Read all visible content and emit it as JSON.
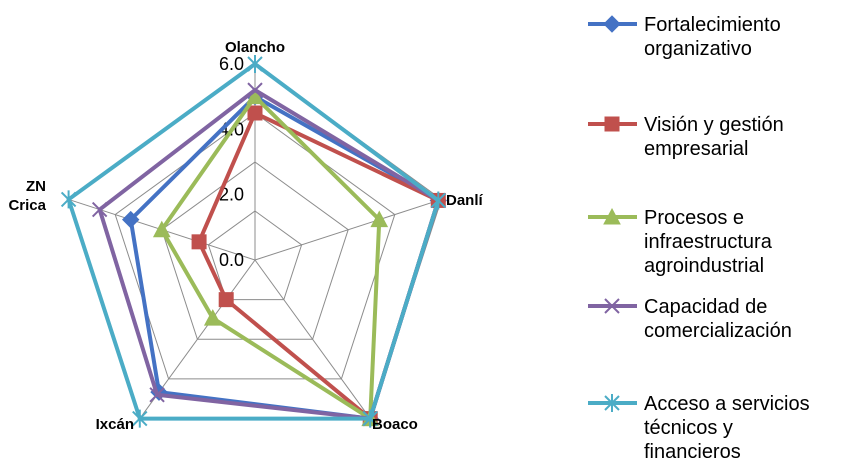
{
  "chart_data": {
    "type": "radar",
    "categories": [
      "Olancho",
      "Danlí",
      "Boaco",
      "Ixcán",
      "ZN\nCrica"
    ],
    "rlim": [
      0,
      6
    ],
    "ticks": [
      "0.0",
      "2.0",
      "4.0",
      "6.0"
    ],
    "grid": true,
    "legend_position": "right",
    "series": [
      {
        "name": "Fortalecimiento organizativo",
        "legend_lines": [
          "Fortalecimiento",
          "organizativo"
        ],
        "color": "#4472C4",
        "marker": "diamond",
        "values": [
          5.0,
          5.9,
          6.0,
          5.0,
          4.0
        ]
      },
      {
        "name": "Visión y gestión empresarial",
        "legend_lines": [
          "Visión y gestión",
          "empresarial"
        ],
        "color": "#C0504D",
        "marker": "square",
        "values": [
          4.5,
          5.9,
          6.0,
          1.5,
          1.8
        ]
      },
      {
        "name": "Procesos e infraestructura agroindustrial",
        "legend_lines": [
          "Procesos e",
          "infraestructura",
          "agroindustrial"
        ],
        "color": "#9BBB59",
        "marker": "triangle",
        "values": [
          5.0,
          4.0,
          6.0,
          2.2,
          3.0
        ]
      },
      {
        "name": "Capacidad de comercialización",
        "legend_lines": [
          "Capacidad de",
          "comercialización"
        ],
        "color": "#8064A2",
        "marker": "x",
        "values": [
          5.2,
          5.9,
          6.0,
          5.1,
          5.0
        ]
      },
      {
        "name": "Acceso a servicios técnicos y financieros",
        "legend_lines": [
          "Acceso a servicios",
          "técnicos y",
          "financieros"
        ],
        "color": "#4BACC6",
        "marker": "star",
        "values": [
          6.0,
          5.9,
          6.0,
          6.0,
          6.0
        ]
      }
    ]
  }
}
